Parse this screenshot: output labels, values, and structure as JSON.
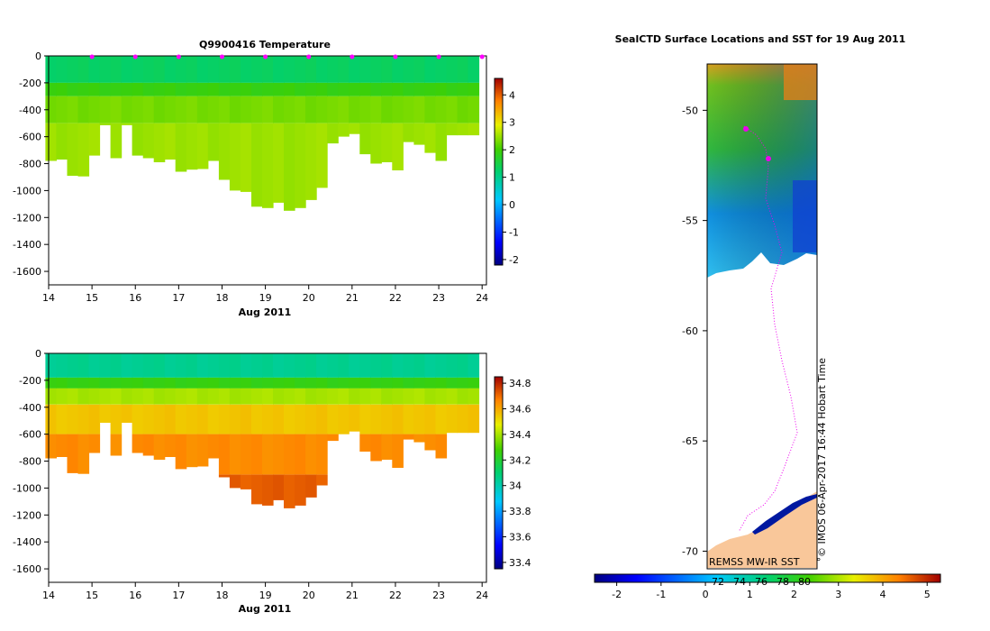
{
  "chart_data": [
    {
      "type": "heatmap",
      "title": "Q9900416  Temperature",
      "xlabel": "Aug 2011",
      "ylabel": "",
      "xlim": [
        14,
        24.1
      ],
      "ylim": [
        -1700,
        0
      ],
      "xticks": [
        "14",
        "15",
        "16",
        "17",
        "18",
        "19",
        "20",
        "21",
        "22",
        "23",
        "24"
      ],
      "yticks": [
        "0",
        "-200",
        "-400",
        "-600",
        "-800",
        "-1000",
        "-1200",
        "-1400",
        "-1600"
      ],
      "profile_days": [
        14.05,
        14.3,
        14.55,
        14.8,
        15.05,
        15.3,
        15.55,
        15.8,
        16.05,
        16.3,
        16.55,
        16.8,
        17.05,
        17.3,
        17.55,
        17.8,
        18.05,
        18.3,
        18.55,
        18.8,
        19.05,
        19.3,
        19.55,
        19.8,
        20.05,
        20.3,
        20.55,
        20.8,
        21.05,
        21.3,
        21.55,
        21.8,
        22.05,
        22.3,
        22.55,
        22.8,
        23.05,
        23.3,
        23.55,
        23.8
      ],
      "max_depths": [
        -780,
        -770,
        -890,
        -895,
        -740,
        -515,
        -760,
        -515,
        -740,
        -760,
        -790,
        -770,
        -860,
        -845,
        -840,
        -780,
        -920,
        -1000,
        -1010,
        -1120,
        -1130,
        -1090,
        -1150,
        -1130,
        -1070,
        -980,
        -650,
        -600,
        -580,
        -730,
        -800,
        -790,
        -850,
        -640,
        -660,
        -720,
        -780,
        -590,
        -590,
        -590
      ],
      "colorbar": {
        "min": -2.2,
        "max": 4.6,
        "ticks": [
          "4",
          "3",
          "2",
          "1",
          "0",
          "-1",
          "-2"
        ],
        "values": [
          4,
          3,
          2,
          1,
          0,
          -1,
          -2
        ]
      },
      "layers": [
        {
          "from": 0,
          "to": -200,
          "value": 1.3
        },
        {
          "from": -200,
          "to": -300,
          "value": 1.9
        },
        {
          "from": -300,
          "to": -500,
          "value": 2.3
        },
        {
          "from": -500,
          "to": -1200,
          "value": 2.5
        }
      ]
    },
    {
      "type": "heatmap",
      "title": "",
      "xlabel": "Aug 2011",
      "ylabel": "",
      "xlim": [
        14,
        24.1
      ],
      "ylim": [
        -1700,
        0
      ],
      "xticks": [
        "14",
        "15",
        "16",
        "17",
        "18",
        "19",
        "20",
        "21",
        "22",
        "23",
        "24"
      ],
      "yticks": [
        "0",
        "-200",
        "-400",
        "-600",
        "-800",
        "-1000",
        "-1200",
        "-1400",
        "-1600"
      ],
      "colorbar": {
        "min": 33.35,
        "max": 34.85,
        "ticks": [
          "34.8",
          "34.6",
          "34.4",
          "34.2",
          "34",
          "33.8",
          "33.6",
          "33.4"
        ],
        "values": [
          34.8,
          34.6,
          34.4,
          34.2,
          34.0,
          33.8,
          33.6,
          33.4
        ]
      },
      "layers": [
        {
          "from": 0,
          "to": -180,
          "value": 34.05
        },
        {
          "from": -180,
          "to": -260,
          "value": 34.25
        },
        {
          "from": -260,
          "to": -380,
          "value": 34.4
        },
        {
          "from": -380,
          "to": -600,
          "value": 34.55
        },
        {
          "from": -600,
          "to": -900,
          "value": 34.65
        },
        {
          "from": -900,
          "to": -1200,
          "value": 34.72
        }
      ]
    },
    {
      "type": "heatmap",
      "title": "SealCTD Surface Locations and SST for 19 Aug 2011",
      "xlabel": "",
      "ylabel": "",
      "ylim": [
        -70.8,
        -47.9
      ],
      "yticks": [
        "-50",
        "-55",
        "-60",
        "-65",
        "-70"
      ],
      "ytick_values": [
        -50,
        -55,
        -60,
        -65,
        -70
      ],
      "xticks_inner": [
        "72",
        "74",
        "76",
        "78",
        "80"
      ],
      "colorbar": {
        "min": -2.5,
        "max": 5.3,
        "ticks": [
          "-2",
          "-1",
          "0",
          "1",
          "2",
          "3",
          "4",
          "5"
        ],
        "values": [
          -2,
          -1,
          0,
          1,
          2,
          3,
          4,
          5
        ]
      },
      "credit": "© IMOS 06-Apr-2017 16:44 Hobart Time",
      "source": "REMSS MW-IR SST"
    }
  ],
  "colors": {
    "profile_marker": "#ff00ff",
    "land": "#f9c79a",
    "track": "#ee00ee"
  }
}
